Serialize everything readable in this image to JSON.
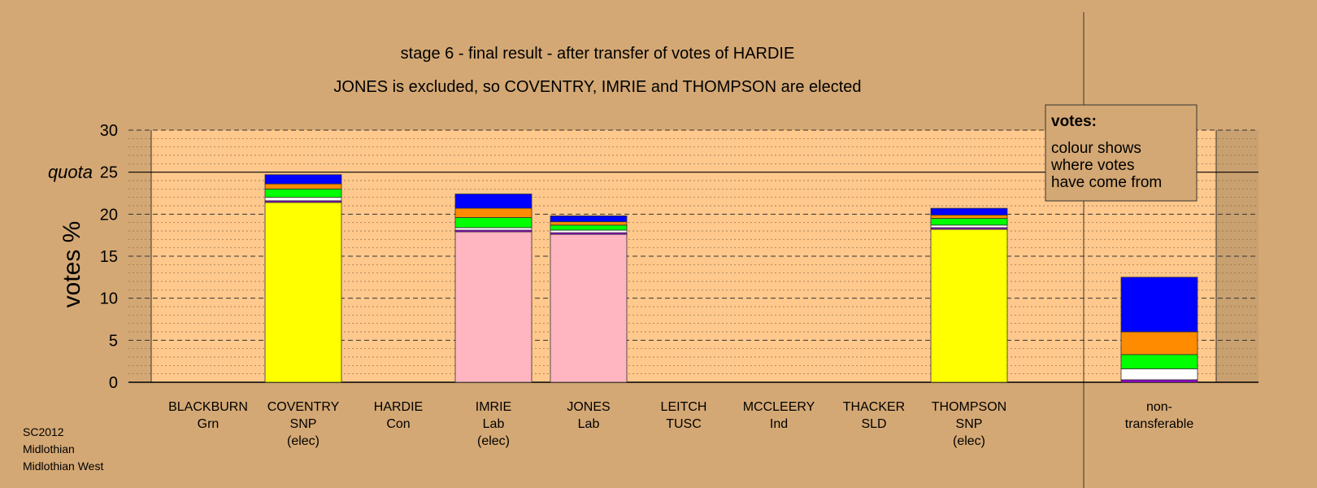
{
  "chart_data": {
    "type": "bar",
    "title": "stage 6 - final result - after transfer of votes of HARDIE",
    "subtitle": "JONES is excluded, so COVENTRY, IMRIE and THOMPSON are elected",
    "ylabel": "votes %",
    "ylim": [
      0,
      30
    ],
    "yticks": [
      "0",
      "5",
      "10",
      "15",
      "20",
      "25",
      "30"
    ],
    "quota": {
      "label": "quota",
      "value": 25
    },
    "stacked": true,
    "candidates": [
      {
        "name": "BLACKBURN",
        "party": "Grn",
        "note": "",
        "segments": []
      },
      {
        "name": "COVENTRY",
        "party": "SNP",
        "note": "(elec)",
        "segments": [
          {
            "color": "#ffff00",
            "value": 21.4
          },
          {
            "color": "#9400d3",
            "value": 0.2
          },
          {
            "color": "#ffffff",
            "value": 0.4
          },
          {
            "color": "#00ff00",
            "value": 1.0
          },
          {
            "color": "#ff8c00",
            "value": 0.6
          },
          {
            "color": "#0000ff",
            "value": 1.1
          }
        ]
      },
      {
        "name": "HARDIE",
        "party": "Con",
        "note": "",
        "segments": []
      },
      {
        "name": "IMRIE",
        "party": "Lab",
        "note": "(elec)",
        "segments": [
          {
            "color": "#ffb6c1",
            "value": 17.9
          },
          {
            "color": "#9400d3",
            "value": 0.2
          },
          {
            "color": "#ffffff",
            "value": 0.3
          },
          {
            "color": "#00ff00",
            "value": 1.2
          },
          {
            "color": "#ff8c00",
            "value": 1.1
          },
          {
            "color": "#0000ff",
            "value": 1.7
          }
        ]
      },
      {
        "name": "JONES",
        "party": "Lab",
        "note": "",
        "segments": [
          {
            "color": "#ffb6c1",
            "value": 17.6
          },
          {
            "color": "#9400d3",
            "value": 0.2
          },
          {
            "color": "#ffffff",
            "value": 0.3
          },
          {
            "color": "#00ff00",
            "value": 0.6
          },
          {
            "color": "#ff8c00",
            "value": 0.4
          },
          {
            "color": "#0000ff",
            "value": 0.7
          }
        ]
      },
      {
        "name": "LEITCH",
        "party": "TUSC",
        "note": "",
        "segments": []
      },
      {
        "name": "MCCLEERY",
        "party": "Ind",
        "note": "",
        "segments": []
      },
      {
        "name": "THACKER",
        "party": "SLD",
        "note": "",
        "segments": []
      },
      {
        "name": "THOMPSON",
        "party": "SNP",
        "note": "(elec)",
        "segments": [
          {
            "color": "#ffff00",
            "value": 18.2
          },
          {
            "color": "#9400d3",
            "value": 0.2
          },
          {
            "color": "#ffffff",
            "value": 0.3
          },
          {
            "color": "#00ff00",
            "value": 0.8
          },
          {
            "color": "#ff8c00",
            "value": 0.4
          },
          {
            "color": "#0000ff",
            "value": 0.8
          }
        ]
      }
    ],
    "nontransferable": {
      "name": "non-",
      "name2": "transferable",
      "segments": [
        {
          "color": "#9400d3",
          "value": 0.3
        },
        {
          "color": "#ffffff",
          "value": 1.3
        },
        {
          "color": "#00ff00",
          "value": 1.7
        },
        {
          "color": "#ff8c00",
          "value": 2.7
        },
        {
          "color": "#0000ff",
          "value": 6.5
        }
      ]
    },
    "legend": {
      "title": "votes:",
      "lines": [
        "colour shows",
        "where votes",
        "have come from"
      ]
    },
    "colors": {
      "background": "#d4a874",
      "plot_background": "#ffc88c"
    }
  },
  "footer": {
    "lines": [
      "SC2012",
      "Midlothian",
      "Midlothian West"
    ]
  }
}
